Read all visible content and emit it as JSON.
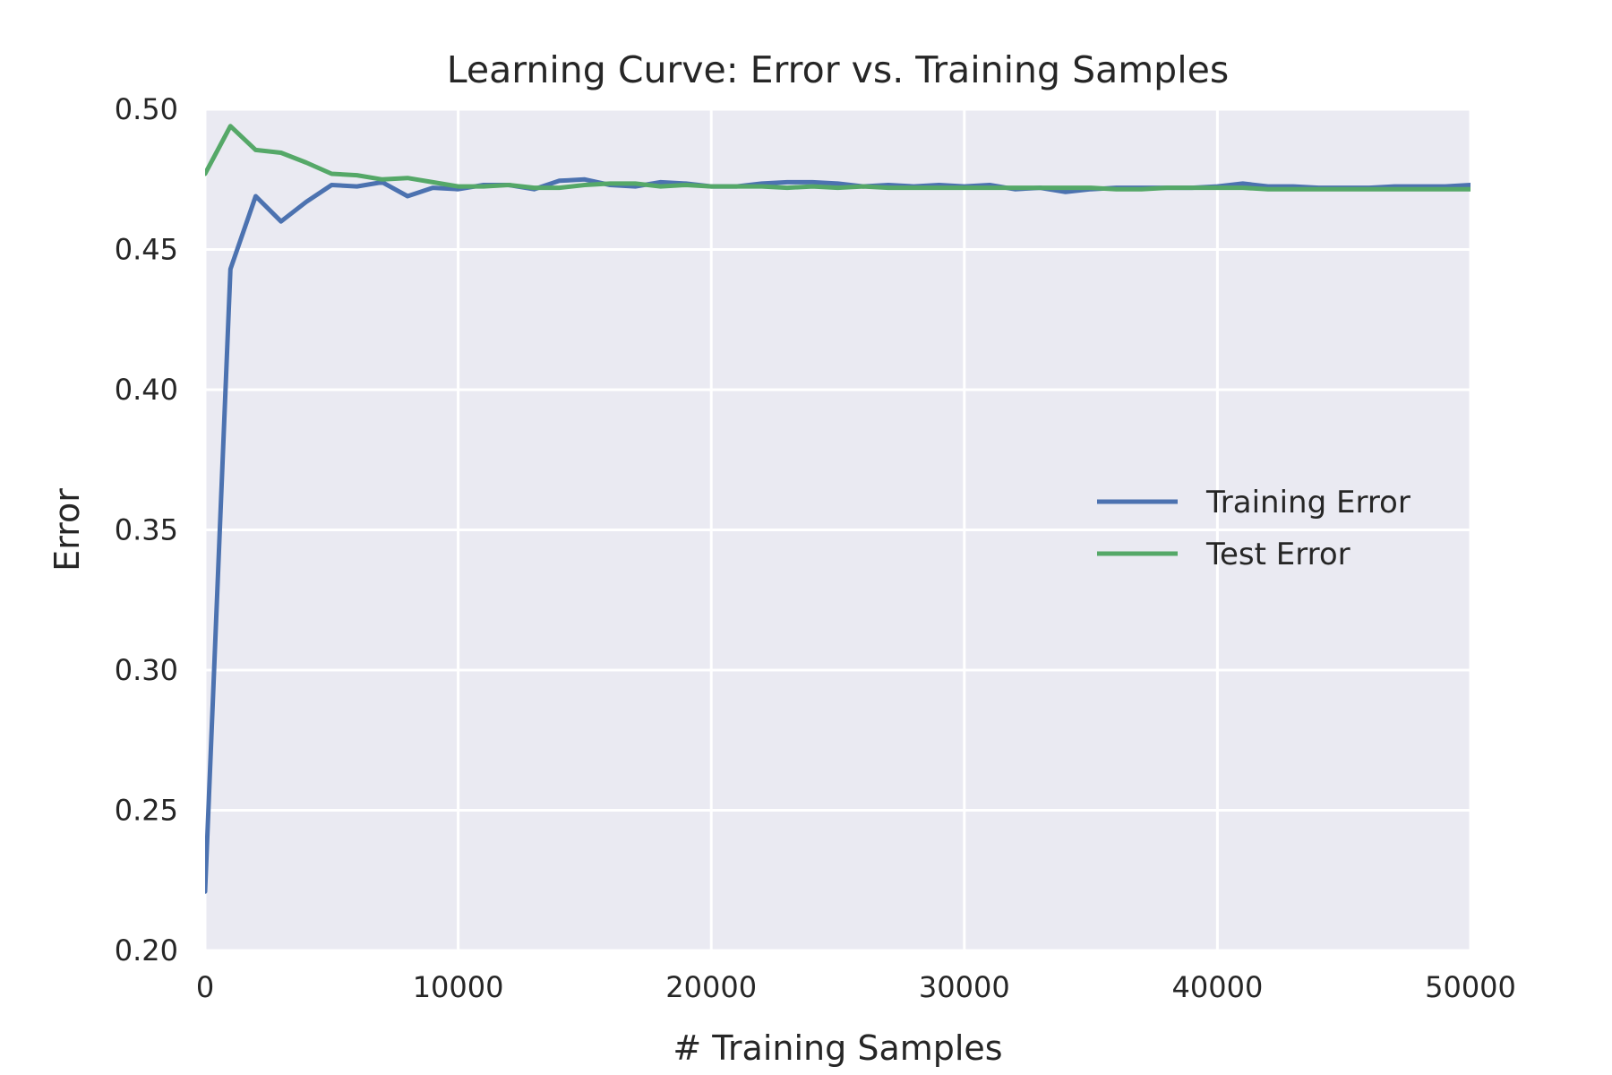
{
  "chart_data": {
    "type": "line",
    "title": "Learning Curve: Error vs. Training Samples",
    "xlabel": "# Training Samples",
    "ylabel": "Error",
    "xlim": [
      0,
      50000
    ],
    "ylim": [
      0.2,
      0.5
    ],
    "x_ticks": [
      0,
      10000,
      20000,
      30000,
      40000,
      50000
    ],
    "y_ticks": [
      "0.20",
      "0.25",
      "0.30",
      "0.35",
      "0.40",
      "0.45",
      "0.50"
    ],
    "grid": true,
    "legend_position": "center-right",
    "background": "#eaeaf2",
    "x": [
      0,
      1000,
      2000,
      3000,
      4000,
      5000,
      6000,
      7000,
      8000,
      9000,
      10000,
      11000,
      12000,
      13000,
      14000,
      15000,
      16000,
      17000,
      18000,
      19000,
      20000,
      21000,
      22000,
      23000,
      24000,
      25000,
      26000,
      27000,
      28000,
      29000,
      30000,
      31000,
      32000,
      33000,
      34000,
      35000,
      36000,
      37000,
      38000,
      39000,
      40000,
      41000,
      42000,
      43000,
      44000,
      45000,
      46000,
      47000,
      48000,
      49000,
      50000
    ],
    "series": [
      {
        "name": "Training Error",
        "color": "#4c72b0",
        "values": [
          0.221,
          0.443,
          0.469,
          0.46,
          0.467,
          0.473,
          0.4725,
          0.474,
          0.469,
          0.472,
          0.4715,
          0.473,
          0.473,
          0.4715,
          0.4745,
          0.475,
          0.473,
          0.4725,
          0.474,
          0.4735,
          0.4725,
          0.4725,
          0.4735,
          0.474,
          0.474,
          0.4735,
          0.4725,
          0.473,
          0.4725,
          0.473,
          0.4725,
          0.473,
          0.4715,
          0.472,
          0.4705,
          0.4715,
          0.472,
          0.472,
          0.472,
          0.472,
          0.4725,
          0.4735,
          0.4725,
          0.4725,
          0.472,
          0.472,
          0.472,
          0.4725,
          0.4725,
          0.4725,
          0.473
        ]
      },
      {
        "name": "Test Error",
        "color": "#55a868",
        "values": [
          0.477,
          0.494,
          0.4855,
          0.4845,
          0.481,
          0.477,
          0.4765,
          0.475,
          0.4755,
          0.474,
          0.4725,
          0.4725,
          0.473,
          0.472,
          0.472,
          0.473,
          0.4735,
          0.4735,
          0.4725,
          0.473,
          0.4725,
          0.4725,
          0.4725,
          0.472,
          0.4725,
          0.472,
          0.4725,
          0.472,
          0.472,
          0.472,
          0.472,
          0.472,
          0.472,
          0.472,
          0.472,
          0.472,
          0.4715,
          0.4715,
          0.472,
          0.472,
          0.472,
          0.472,
          0.4715,
          0.4715,
          0.4715,
          0.4715,
          0.4715,
          0.4715,
          0.4715,
          0.4715,
          0.4715
        ]
      }
    ]
  }
}
